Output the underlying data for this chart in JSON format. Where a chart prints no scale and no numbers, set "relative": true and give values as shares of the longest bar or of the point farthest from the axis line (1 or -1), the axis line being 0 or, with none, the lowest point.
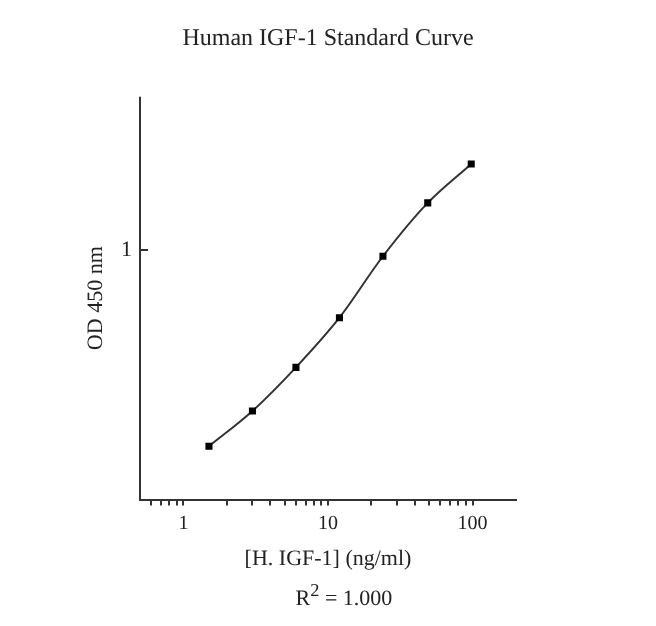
{
  "chart_data": {
    "type": "line",
    "title": "Human IGF-1 Standard Curve",
    "xlabel": "[H. IGF-1] (ng/ml)",
    "ylabel": "OD 450 nm",
    "relative": true,
    "log": "x",
    "x": [
      1.5,
      3,
      6,
      12,
      24,
      49,
      98
    ],
    "series": [
      {
        "color": "#333333",
        "values": [
          0.159,
          0.264,
          0.394,
          0.542,
          0.725,
          0.884,
          1
        ]
      }
    ],
    "xlim": [
      0.5,
      200
    ],
    "xticks": [
      {
        "value": 0.6,
        "label": null
      },
      {
        "value": 0.7,
        "label": null
      },
      {
        "value": 0.8,
        "label": null
      },
      {
        "value": 0.9,
        "label": null
      },
      1,
      {
        "value": 2,
        "label": null
      },
      {
        "value": 3,
        "label": null
      },
      {
        "value": 4,
        "label": null
      },
      {
        "value": 5,
        "label": null
      },
      {
        "value": 6,
        "label": null
      },
      {
        "value": 7,
        "label": null
      },
      {
        "value": 8,
        "label": null
      },
      {
        "value": 9,
        "label": null
      },
      10,
      {
        "value": 20,
        "label": null
      },
      {
        "value": 30,
        "label": null
      },
      {
        "value": 40,
        "label": null
      },
      {
        "value": 50,
        "label": null
      },
      {
        "value": 60,
        "label": null
      },
      {
        "value": 70,
        "label": null
      },
      {
        "value": 80,
        "label": null
      },
      {
        "value": 90,
        "label": null
      },
      100
    ],
    "annotations": [
      "1",
      "R$^{2}$ = 1.000"
    ],
    "marker": "square",
    "line_style": "solid",
    "grid": false,
    "legend": false
  }
}
